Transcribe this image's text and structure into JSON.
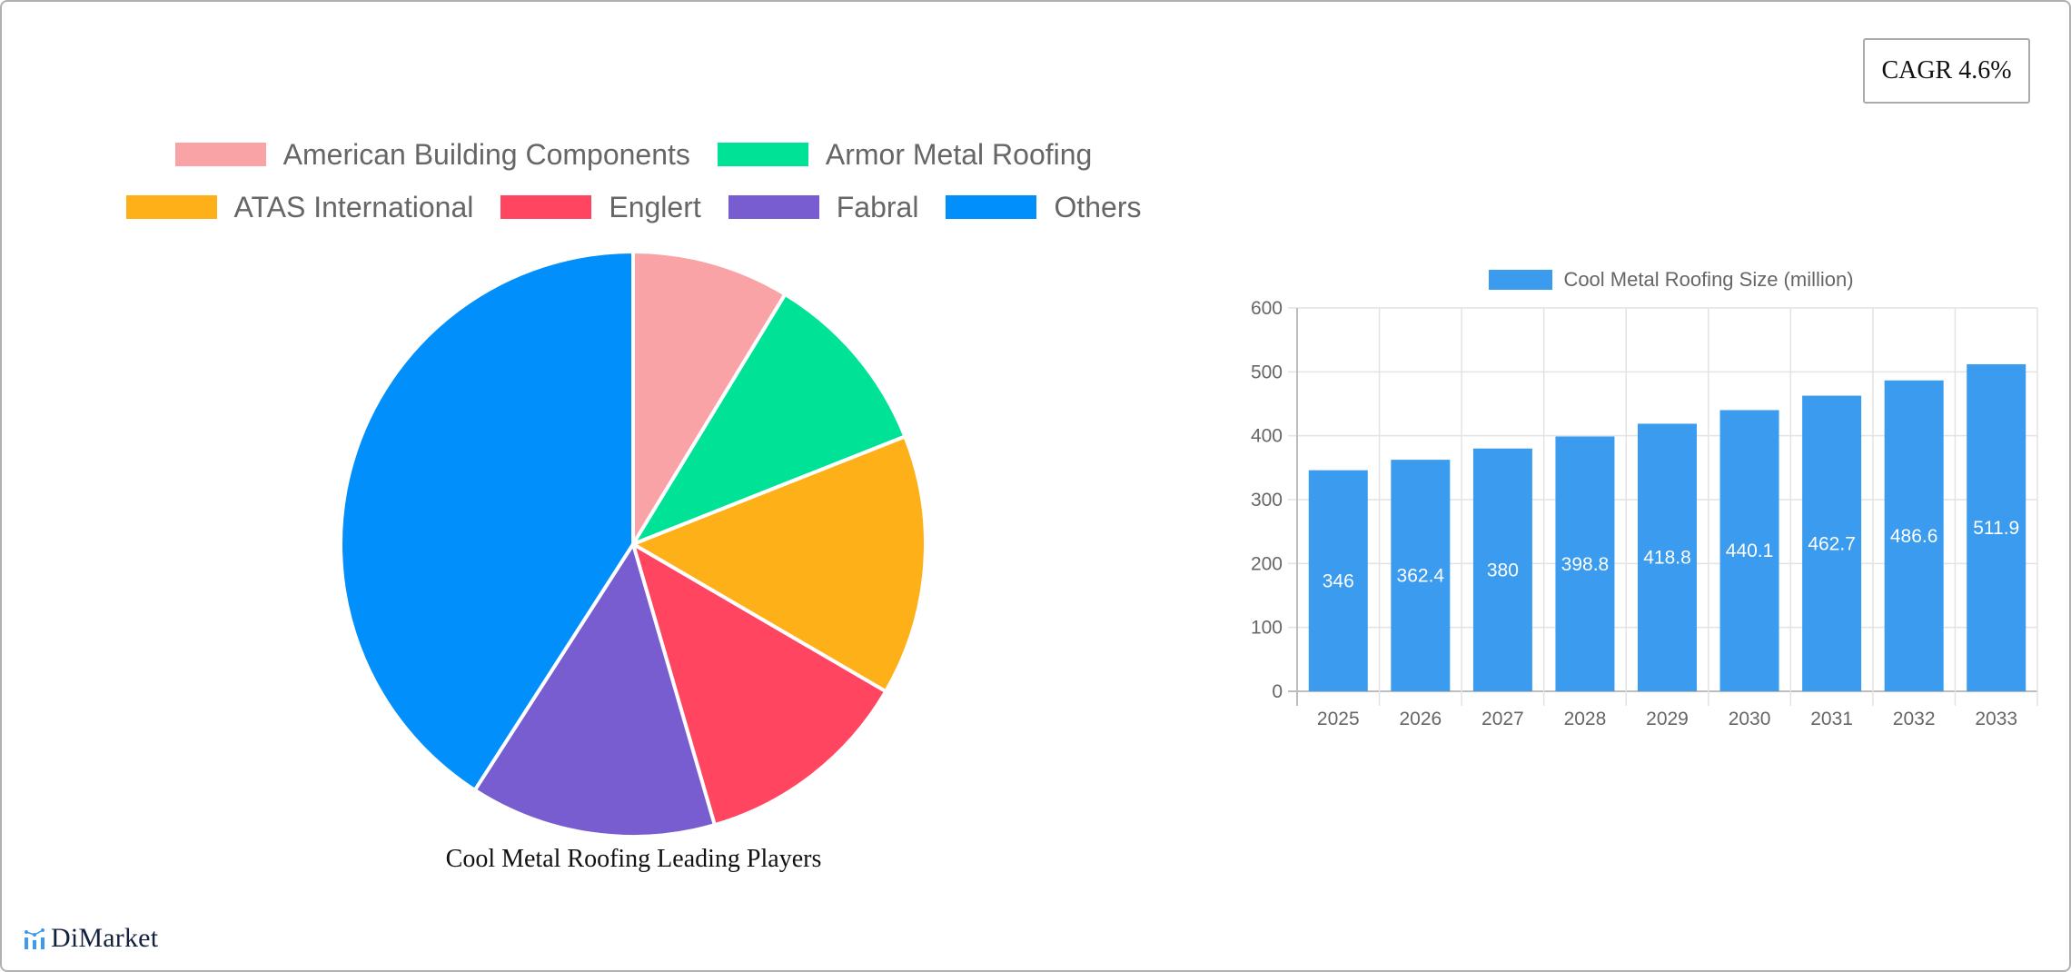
{
  "cagr": {
    "label": "CAGR 4.6%"
  },
  "pie_chart": {
    "title": "Cool Metal Roofing Leading Players",
    "legend_rows": [
      [
        0,
        1
      ],
      [
        2,
        3,
        4,
        5
      ]
    ]
  },
  "bar_chart": {
    "legend_label": "Cool Metal Roofing Size (million)"
  },
  "logo": {
    "text": "DiMarket"
  },
  "chart_data": [
    {
      "type": "pie",
      "title": "Cool Metal Roofing Leading Players",
      "legend_position": "top",
      "categories": [
        "American Building Components",
        "Armor Metal Roofing",
        "ATAS International",
        "Englert",
        "Fabral",
        "Others"
      ],
      "values": [
        8.7,
        10.3,
        14.4,
        12.1,
        13.6,
        40.9
      ],
      "value_unit": "approx. share %",
      "colors": [
        "#f9a3a6",
        "#00e396",
        "#feb019",
        "#ff4560",
        "#775dd0",
        "#008ffb"
      ]
    },
    {
      "type": "bar",
      "title": "",
      "series": [
        {
          "name": "Cool Metal Roofing Size (million)",
          "values": [
            346,
            362.4,
            380,
            398.8,
            418.8,
            440.1,
            462.7,
            486.6,
            511.9
          ],
          "color": "#3a9bef"
        }
      ],
      "categories": [
        "2025",
        "2026",
        "2027",
        "2028",
        "2029",
        "2030",
        "2031",
        "2032",
        "2033"
      ],
      "xlabel": "",
      "ylabel": "",
      "ylim": [
        0,
        600
      ],
      "yticks": [
        0,
        100,
        200,
        300,
        400,
        500,
        600
      ],
      "grid": true,
      "data_labels": true,
      "legend_position": "top"
    }
  ]
}
